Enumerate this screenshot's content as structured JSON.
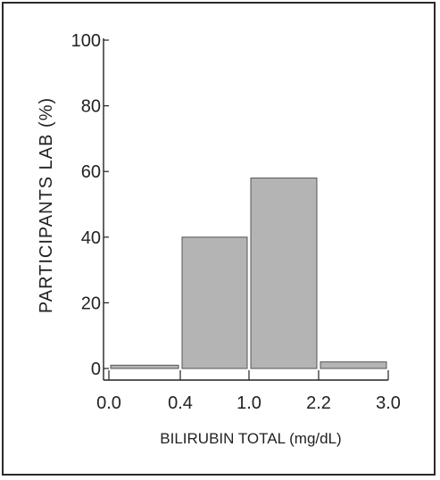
{
  "chart_data": {
    "type": "bar",
    "bins": [
      {
        "from": "0.0",
        "to": "0.4",
        "value": 1
      },
      {
        "from": "0.4",
        "to": "1.0",
        "value": 40
      },
      {
        "from": "1.0",
        "to": "2.2",
        "value": 58
      },
      {
        "from": "2.2",
        "to": "3.0",
        "value": 2
      }
    ],
    "x_ticks": [
      "0.0",
      "0.4",
      "1.0",
      "2.2",
      "3.0"
    ],
    "y_ticks": [
      "0",
      "20",
      "40",
      "60",
      "80",
      "100"
    ],
    "ylim": [
      0,
      100
    ],
    "xlabel": "BILIRUBIN TOTAL (mg/dL)",
    "ylabel": "PARTICIPANTS LAB (%)",
    "bar_color": "#b4b4b4",
    "grid": false
  }
}
